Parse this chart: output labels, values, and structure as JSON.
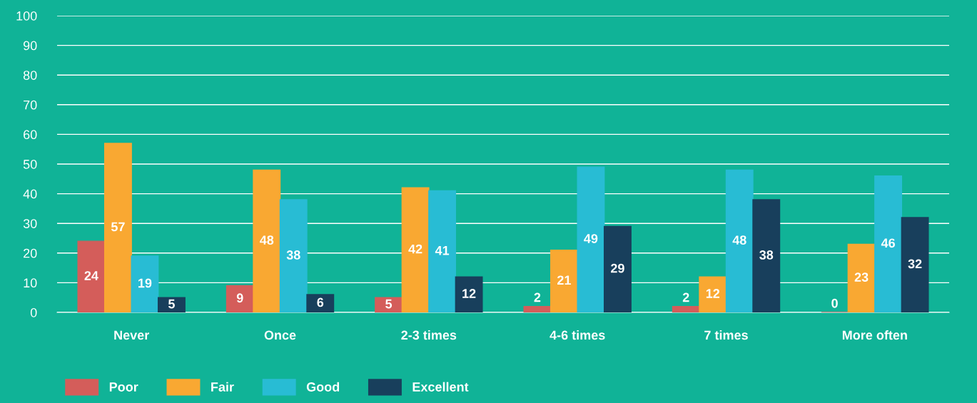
{
  "chart_data": {
    "type": "bar",
    "categories": [
      "Never",
      "Once",
      "2-3 times",
      "4-6 times",
      "7 times",
      "More often"
    ],
    "series": [
      {
        "name": "Poor",
        "color": "#d45d5a",
        "values": [
          24,
          9,
          5,
          2,
          2,
          0
        ]
      },
      {
        "name": "Fair",
        "color": "#f9a832",
        "values": [
          57,
          48,
          42,
          21,
          12,
          23
        ]
      },
      {
        "name": "Good",
        "color": "#28bcd4",
        "values": [
          19,
          38,
          41,
          49,
          48,
          46
        ]
      },
      {
        "name": "Excellent",
        "color": "#183f5c",
        "values": [
          5,
          6,
          12,
          29,
          38,
          32
        ]
      }
    ],
    "ylim": [
      0,
      100
    ],
    "yticks": [
      0,
      10,
      20,
      30,
      40,
      50,
      60,
      70,
      80,
      90,
      100
    ],
    "grid": "y",
    "legend": "bottom left",
    "data_labels": true
  }
}
